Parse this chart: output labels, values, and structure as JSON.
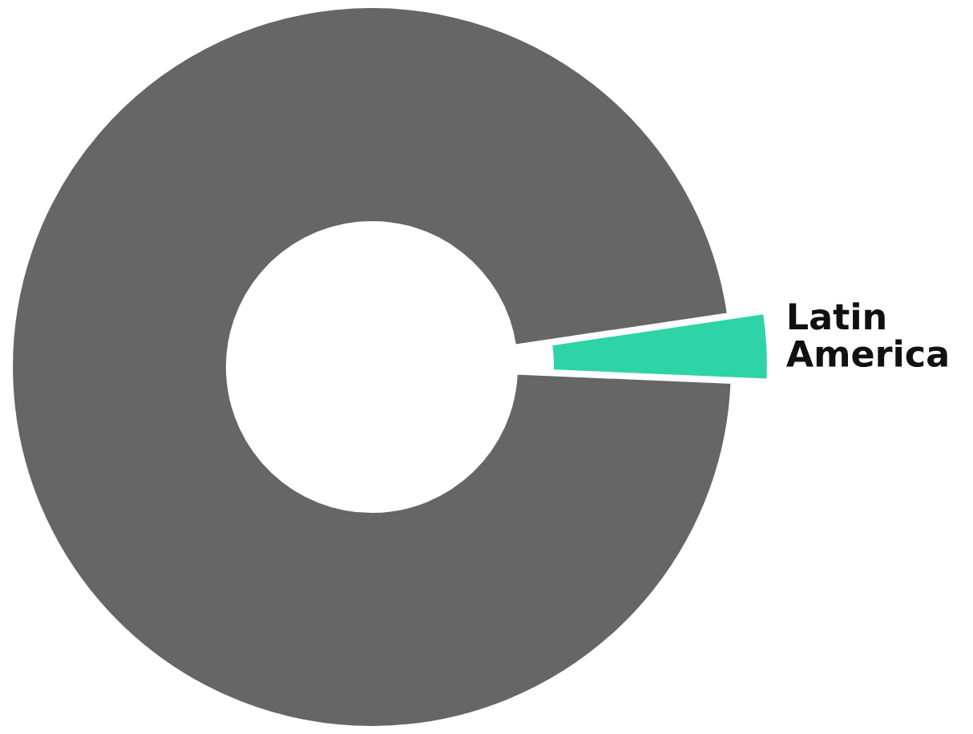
{
  "chart_data": {
    "type": "donut",
    "categories": [
      "Latin America",
      null
    ],
    "values": [
      3,
      97
    ],
    "colors": [
      "#2ed3a8",
      "#666666"
    ]
  }
}
